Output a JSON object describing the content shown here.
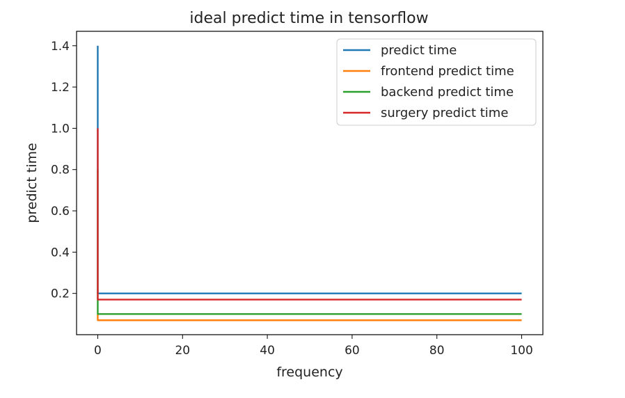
{
  "chart_data": {
    "type": "line",
    "title": "ideal predict time in tensorflow",
    "xlabel": "frequency",
    "ylabel": "predict time",
    "xlim": [
      -5,
      105
    ],
    "ylim": [
      0.0,
      1.47
    ],
    "x_ticks": [
      0,
      20,
      40,
      60,
      80,
      100
    ],
    "y_ticks": [
      0.2,
      0.4,
      0.6,
      0.8,
      1.0,
      1.2,
      1.4
    ],
    "x_tick_labels": [
      "0",
      "20",
      "40",
      "60",
      "80",
      "100"
    ],
    "y_tick_labels": [
      "0.2",
      "0.4",
      "0.6",
      "0.8",
      "1.0",
      "1.2",
      "1.4"
    ],
    "grid": false,
    "legend_position": "top-right",
    "series": [
      {
        "name": "predict time",
        "color": "#1f77b4",
        "x": [
          0,
          0,
          0.5,
          100
        ],
        "y": [
          1.4,
          0.2,
          0.2,
          0.2
        ]
      },
      {
        "name": "frontend predict time",
        "color": "#ff7f0e",
        "x": [
          0,
          0,
          0.5,
          100
        ],
        "y": [
          0.1,
          0.07,
          0.07,
          0.07
        ]
      },
      {
        "name": "backend predict time",
        "color": "#2ca02c",
        "x": [
          0,
          0,
          0.5,
          100
        ],
        "y": [
          0.8,
          0.1,
          0.1,
          0.1
        ]
      },
      {
        "name": "surgery predict time",
        "color": "#d62728",
        "x": [
          0,
          0,
          0.5,
          100
        ],
        "y": [
          1.0,
          0.17,
          0.17,
          0.17
        ]
      }
    ]
  }
}
